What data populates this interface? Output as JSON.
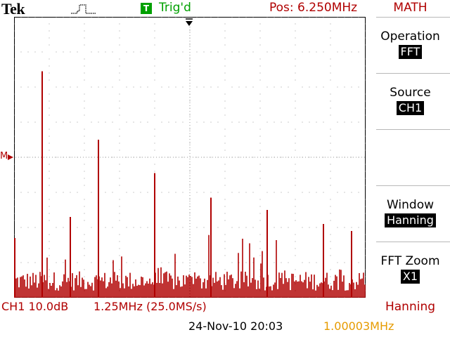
{
  "header": {
    "brand": "Tek",
    "trigger_badge": "T",
    "trigger_status": "Trig'd",
    "position": "Pos: 6.250MHz",
    "menu_title": "MATH"
  },
  "colors": {
    "trace": "#b00000",
    "trigger_green": "#00a000",
    "freq_orange": "#e69b00"
  },
  "plot": {
    "marker_label": "M"
  },
  "menu": {
    "items": [
      {
        "label": "Operation",
        "value": "FFT"
      },
      {
        "label": "Source",
        "value": "CH1"
      },
      {
        "label": "Window",
        "value": "Hanning"
      },
      {
        "label": "FFT Zoom",
        "value": "X1"
      }
    ]
  },
  "footer": {
    "channel_scale": "CH1 10.0dB",
    "freq_scale": "1.25MHz (25.0MS/s)",
    "window": "Hanning",
    "datetime": "24-Nov-10 20:03",
    "trigger_freq": "1.00003MHz"
  },
  "chart_data": {
    "type": "bar",
    "title": "",
    "xlabel": "",
    "ylabel": "",
    "xlim": [
      0,
      12.5
    ],
    "ylim": [
      0,
      8
    ],
    "grid": true,
    "x_unit": "MHz",
    "y_unit": "divisions (10.0dB/div)",
    "peaks": [
      {
        "x": 0.0,
        "y": 1.7
      },
      {
        "x": 1.0,
        "y": 6.45
      },
      {
        "x": 2.0,
        "y": 2.3
      },
      {
        "x": 3.0,
        "y": 4.5
      },
      {
        "x": 5.0,
        "y": 3.55
      },
      {
        "x": 7.0,
        "y": 2.85
      },
      {
        "x": 9.0,
        "y": 2.5
      },
      {
        "x": 11.0,
        "y": 2.1
      },
      {
        "x": 12.0,
        "y": 1.9
      }
    ],
    "noise_floor": {
      "min": 0.2,
      "max": 1.8
    }
  }
}
